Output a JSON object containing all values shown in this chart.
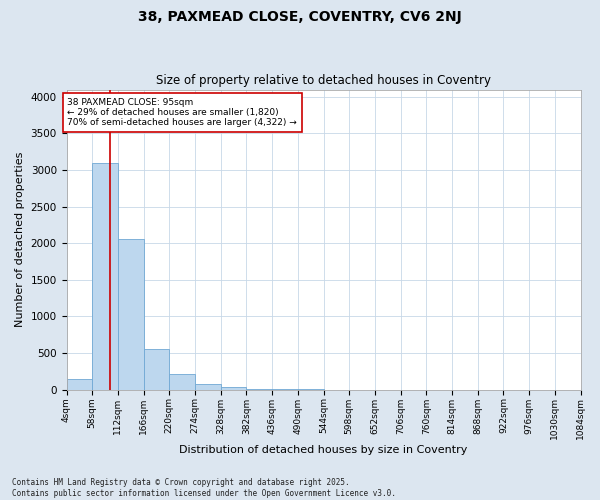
{
  "title_line1": "38, PAXMEAD CLOSE, COVENTRY, CV6 2NJ",
  "title_line2": "Size of property relative to detached houses in Coventry",
  "xlabel": "Distribution of detached houses by size in Coventry",
  "ylabel": "Number of detached properties",
  "bin_labels": [
    "4sqm",
    "58sqm",
    "112sqm",
    "166sqm",
    "220sqm",
    "274sqm",
    "328sqm",
    "382sqm",
    "436sqm",
    "490sqm",
    "544sqm",
    "598sqm",
    "652sqm",
    "706sqm",
    "760sqm",
    "814sqm",
    "868sqm",
    "922sqm",
    "976sqm",
    "1030sqm",
    "1084sqm"
  ],
  "bin_edges": [
    4,
    58,
    112,
    166,
    220,
    274,
    328,
    382,
    436,
    490,
    544,
    598,
    652,
    706,
    760,
    814,
    868,
    922,
    976,
    1030,
    1084
  ],
  "bar_heights": [
    150,
    3090,
    2060,
    560,
    220,
    80,
    30,
    10,
    5,
    3,
    2,
    1,
    1,
    0,
    0,
    0,
    0,
    0,
    0,
    0
  ],
  "bar_color": "#bdd7ee",
  "bar_edge_color": "#70a8d4",
  "property_size": 95,
  "vline_color": "#cc0000",
  "annotation_text": "38 PAXMEAD CLOSE: 95sqm\n← 29% of detached houses are smaller (1,820)\n70% of semi-detached houses are larger (4,322) →",
  "annotation_box_color": "#cc0000",
  "ylim": [
    0,
    4100
  ],
  "yticks": [
    0,
    500,
    1000,
    1500,
    2000,
    2500,
    3000,
    3500,
    4000
  ],
  "grid_color": "#c8d8e8",
  "footnote": "Contains HM Land Registry data © Crown copyright and database right 2025.\nContains public sector information licensed under the Open Government Licence v3.0.",
  "background_color": "#dce6f0",
  "plot_background_color": "#ffffff"
}
